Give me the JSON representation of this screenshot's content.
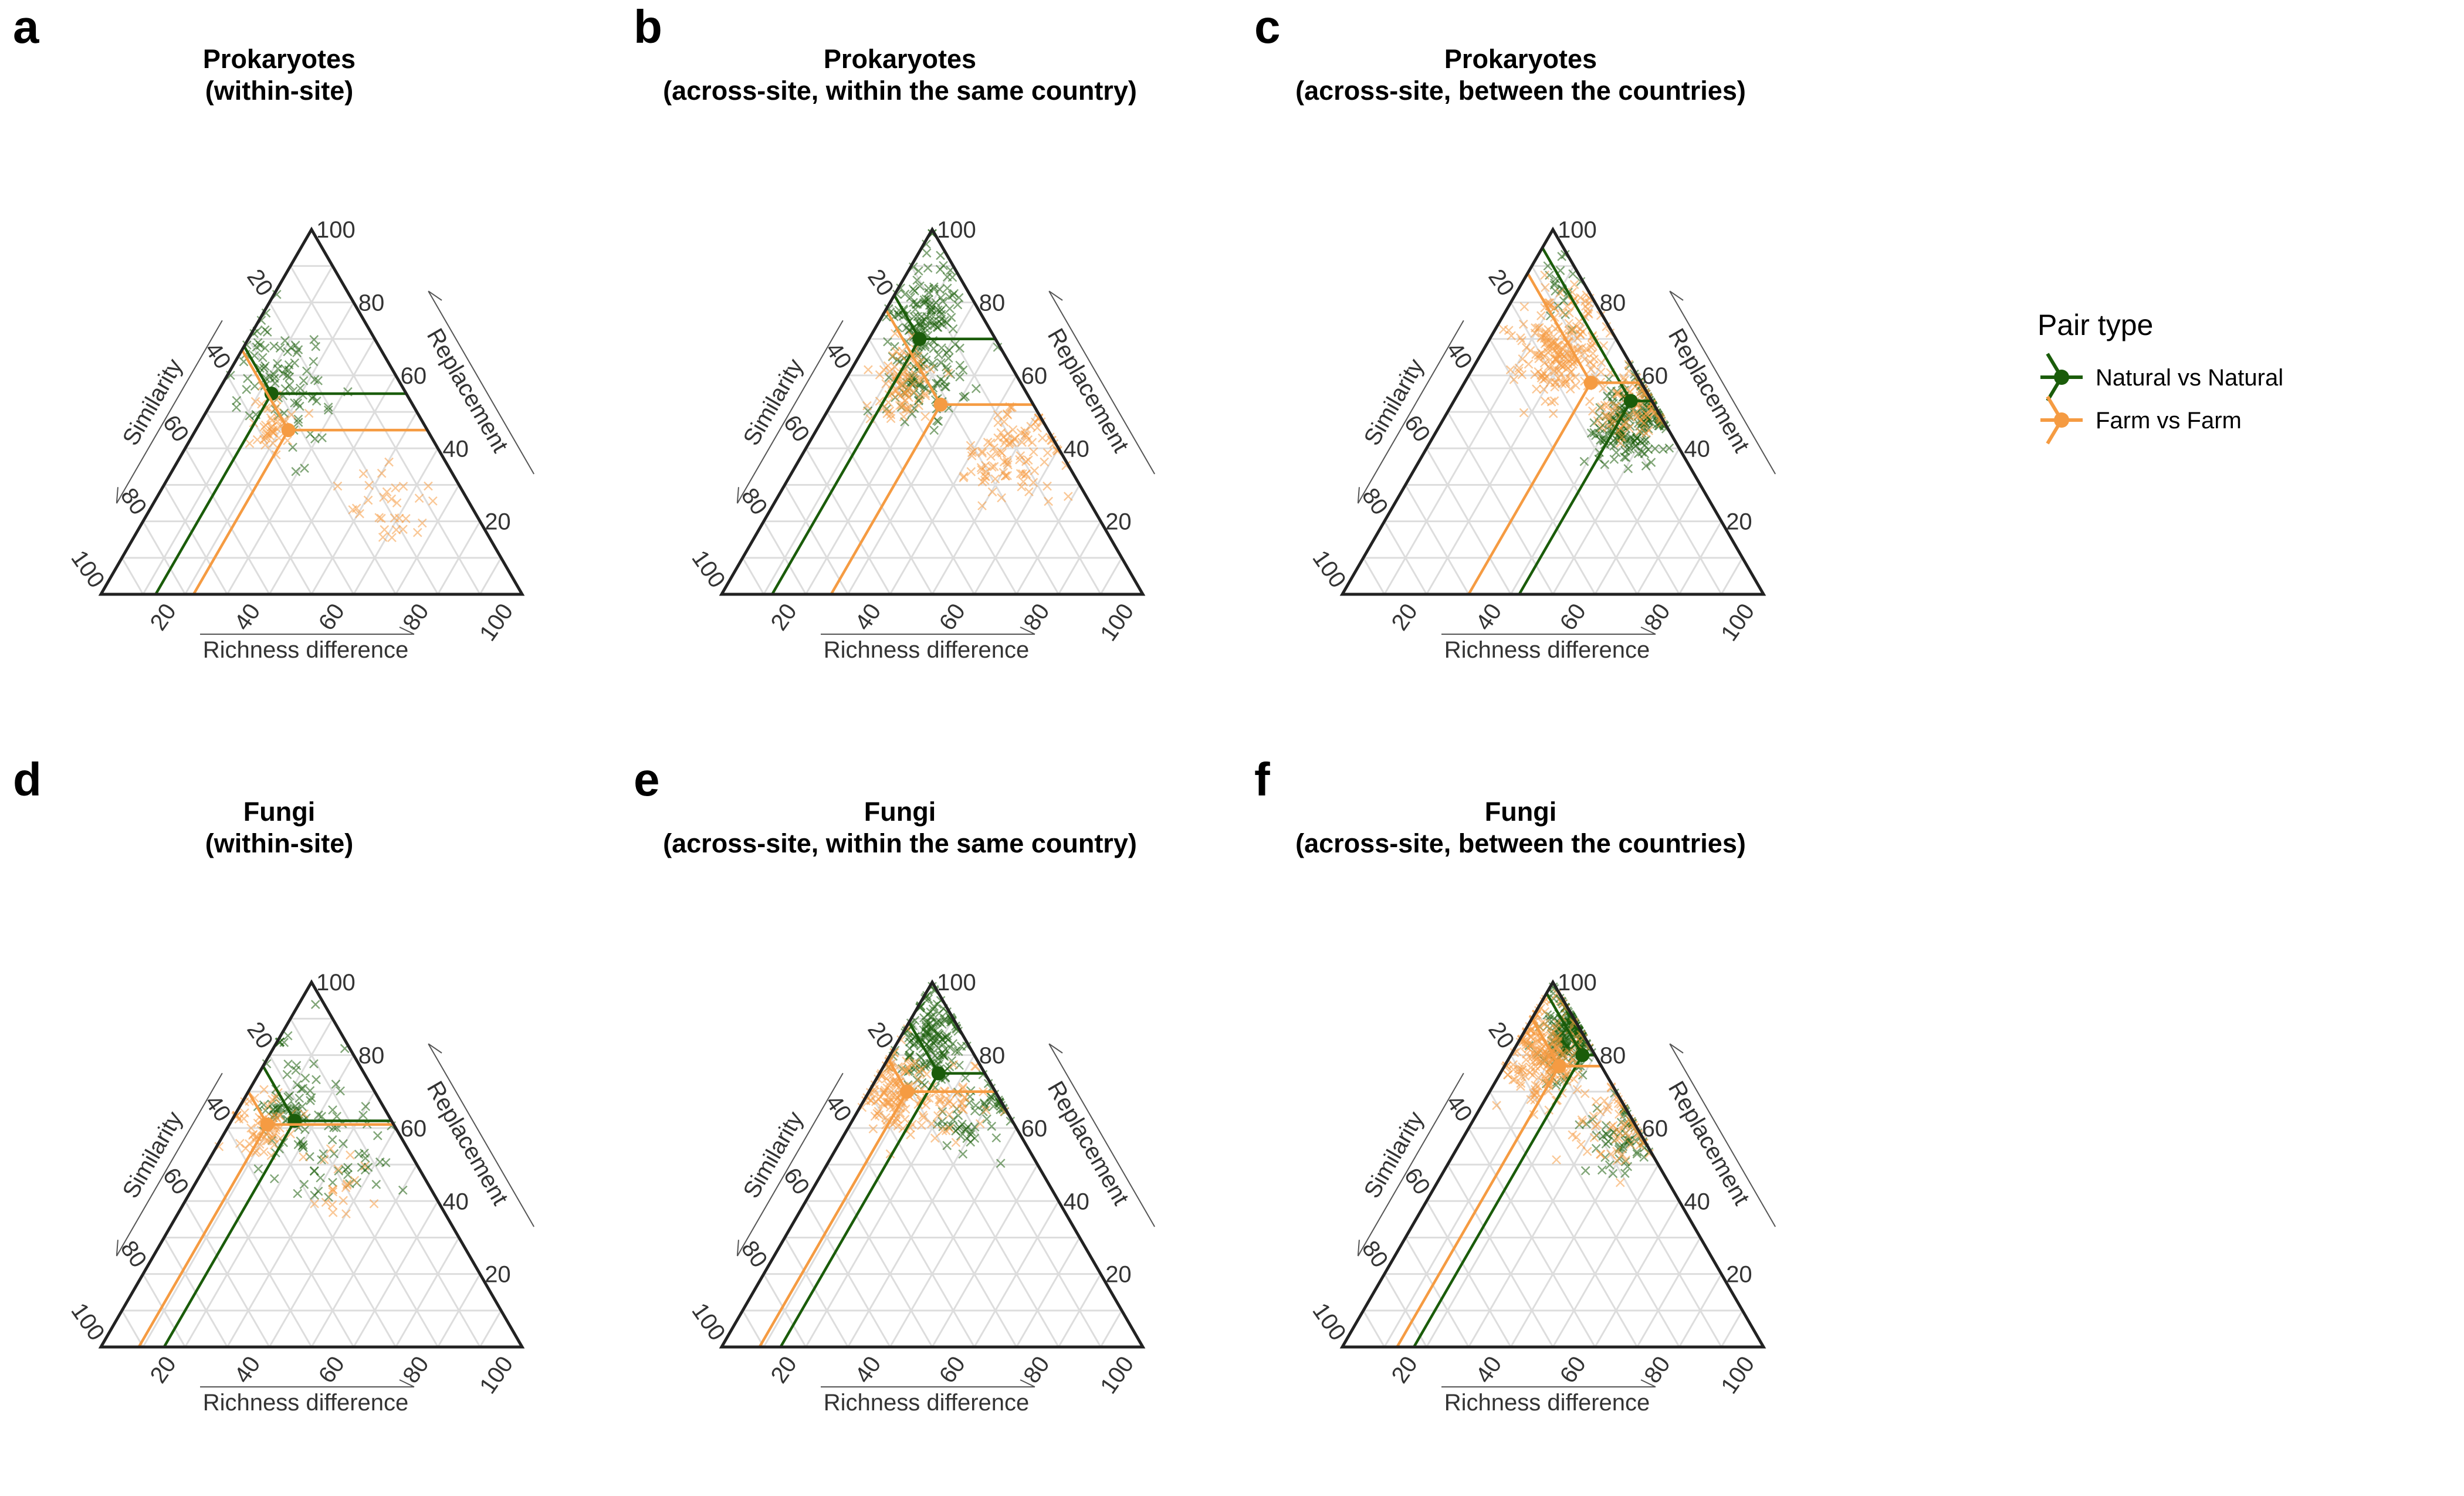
{
  "legend": {
    "title": "Pair type",
    "position": "right",
    "items": [
      {
        "label": "Natural vs Natural",
        "color": "#1a5c0a"
      },
      {
        "label": "Farm vs Farm",
        "color": "#f59b42"
      }
    ]
  },
  "ternary_axes": {
    "top_axis": "Replacement",
    "left_axis": "Similarity",
    "bottom_axis": "Richness difference",
    "ticks": [
      20,
      40,
      60,
      80,
      100
    ],
    "range": [
      0,
      100
    ]
  },
  "chart_data": [
    {
      "type": "scatter",
      "panel": "a",
      "title": "Prokaryotes\n(within-site)",
      "series": [
        {
          "name": "Natural vs Natural",
          "mean": {
            "similarity": 32,
            "replacement": 55,
            "richness_difference": 13
          },
          "cloud": [
            {
              "similarity": 28,
              "replacement": 62,
              "richness_difference": 10,
              "spread": 8,
              "n": 60
            },
            {
              "similarity": 26,
              "replacement": 50,
              "richness_difference": 24,
              "spread": 7,
              "n": 25
            }
          ]
        },
        {
          "name": "Farm vs Farm",
          "mean": {
            "similarity": 33,
            "replacement": 45,
            "richness_difference": 22
          },
          "cloud": [
            {
              "similarity": 35,
              "replacement": 47,
              "richness_difference": 18,
              "spread": 5,
              "n": 40
            },
            {
              "similarity": 20,
              "replacement": 24,
              "richness_difference": 56,
              "spread": 7,
              "n": 30
            }
          ]
        }
      ]
    },
    {
      "type": "scatter",
      "panel": "b",
      "title": "Prokaryotes\n(across-site, within the same country)",
      "series": [
        {
          "name": "Natural vs Natural",
          "mean": {
            "similarity": 18,
            "replacement": 70,
            "richness_difference": 12
          },
          "cloud": [
            {
              "similarity": 13,
              "replacement": 78,
              "richness_difference": 9,
              "spread": 6,
              "n": 110
            },
            {
              "similarity": 22,
              "replacement": 60,
              "richness_difference": 18,
              "spread": 8,
              "n": 90
            }
          ]
        },
        {
          "name": "Farm vs Farm",
          "mean": {
            "similarity": 22,
            "replacement": 52,
            "richness_difference": 26
          },
          "cloud": [
            {
              "similarity": 28,
              "replacement": 58,
              "richness_difference": 14,
              "spread": 6,
              "n": 80
            },
            {
              "similarity": 12,
              "replacement": 38,
              "richness_difference": 50,
              "spread": 8,
              "n": 100
            }
          ]
        }
      ]
    },
    {
      "type": "scatter",
      "panel": "c",
      "title": "Prokaryotes\n(across-site, between the countries)",
      "series": [
        {
          "name": "Natural vs Natural",
          "mean": {
            "similarity": 5,
            "replacement": 53,
            "richness_difference": 42
          },
          "cloud": [
            {
              "similarity": 6,
              "replacement": 48,
              "richness_difference": 46,
              "spread": 7,
              "n": 200
            },
            {
              "similarity": 8,
              "replacement": 82,
              "richness_difference": 10,
              "spread": 5,
              "n": 20
            }
          ]
        },
        {
          "name": "Farm vs Farm",
          "mean": {
            "similarity": 12,
            "replacement": 58,
            "richness_difference": 30
          },
          "cloud": [
            {
              "similarity": 14,
              "replacement": 68,
              "richness_difference": 18,
              "spread": 8,
              "n": 200
            },
            {
              "similarity": 5,
              "replacement": 52,
              "richness_difference": 43,
              "spread": 6,
              "n": 80
            }
          ]
        }
      ]
    },
    {
      "type": "scatter",
      "panel": "d",
      "title": "Fungi\n(within-site)",
      "series": [
        {
          "name": "Natural vs Natural",
          "mean": {
            "similarity": 23,
            "replacement": 62,
            "richness_difference": 15
          },
          "cloud": [
            {
              "similarity": 22,
              "replacement": 66,
              "richness_difference": 12,
              "spread": 8,
              "n": 80
            },
            {
              "similarity": 20,
              "replacement": 48,
              "richness_difference": 32,
              "spread": 8,
              "n": 40
            }
          ]
        },
        {
          "name": "Farm vs Farm",
          "mean": {
            "similarity": 30,
            "replacement": 61,
            "richness_difference": 9
          },
          "cloud": [
            {
              "similarity": 32,
              "replacement": 60,
              "richness_difference": 8,
              "spread": 6,
              "n": 60
            },
            {
              "similarity": 20,
              "replacement": 46,
              "richness_difference": 34,
              "spread": 8,
              "n": 20
            }
          ]
        }
      ]
    },
    {
      "type": "scatter",
      "panel": "e",
      "title": "Fungi\n(across-site, within the same country)",
      "series": [
        {
          "name": "Natural vs Natural",
          "mean": {
            "similarity": 11,
            "replacement": 75,
            "richness_difference": 14
          },
          "cloud": [
            {
              "similarity": 8,
              "replacement": 84,
              "richness_difference": 8,
              "spread": 6,
              "n": 150
            },
            {
              "similarity": 8,
              "replacement": 64,
              "richness_difference": 28,
              "spread": 7,
              "n": 60
            }
          ]
        },
        {
          "name": "Farm vs Farm",
          "mean": {
            "similarity": 21,
            "replacement": 70,
            "richness_difference": 9
          },
          "cloud": [
            {
              "similarity": 24,
              "replacement": 70,
              "richness_difference": 6,
              "spread": 6,
              "n": 120
            },
            {
              "similarity": 12,
              "replacement": 66,
              "richness_difference": 22,
              "spread": 6,
              "n": 40
            }
          ]
        }
      ]
    },
    {
      "type": "scatter",
      "panel": "f",
      "title": "Fungi\n(across-site, between the countries)",
      "series": [
        {
          "name": "Natural vs Natural",
          "mean": {
            "similarity": 3,
            "replacement": 80,
            "richness_difference": 17
          },
          "cloud": [
            {
              "similarity": 3,
              "replacement": 86,
              "richness_difference": 11,
              "spread": 5,
              "n": 200
            },
            {
              "similarity": 4,
              "replacement": 58,
              "richness_difference": 38,
              "spread": 7,
              "n": 60
            }
          ]
        },
        {
          "name": "Farm vs Farm",
          "mean": {
            "similarity": 10,
            "replacement": 77,
            "richness_difference": 13
          },
          "cloud": [
            {
              "similarity": 12,
              "replacement": 80,
              "richness_difference": 8,
              "spread": 7,
              "n": 200
            },
            {
              "similarity": 6,
              "replacement": 60,
              "richness_difference": 34,
              "spread": 8,
              "n": 60
            }
          ]
        }
      ]
    }
  ]
}
